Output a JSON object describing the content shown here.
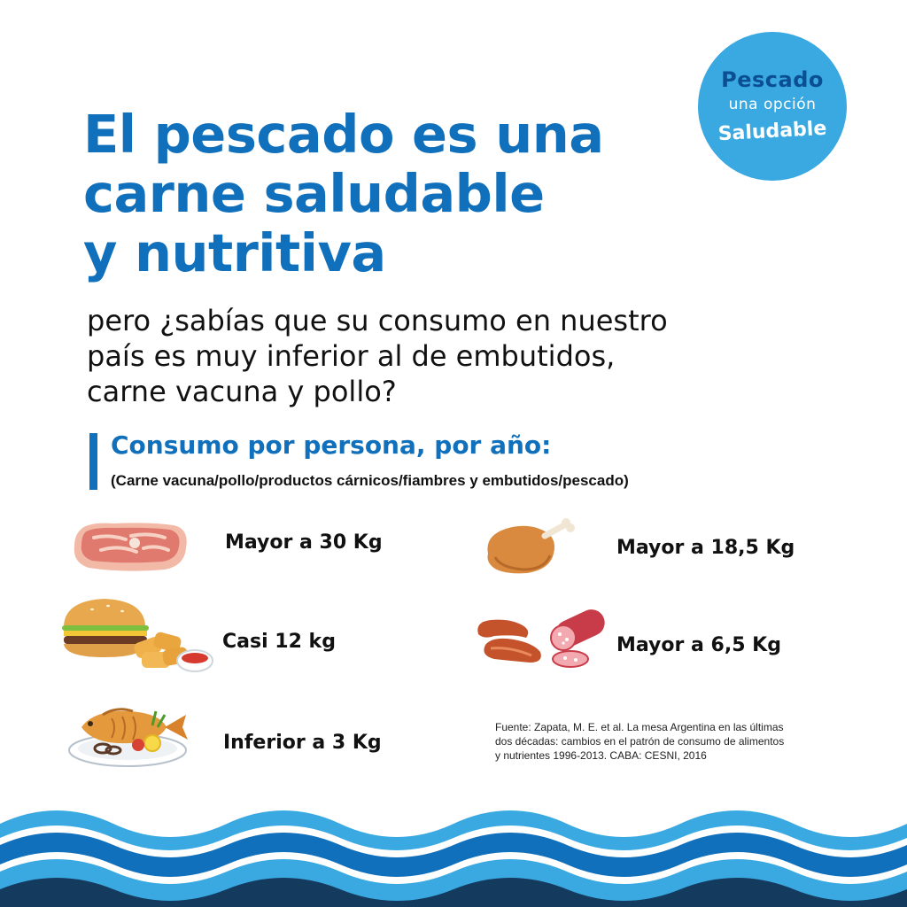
{
  "badge": {
    "line1": "Pescado",
    "line2": "una opción",
    "line3": "Saludable"
  },
  "title": {
    "line1": "El pescado es una",
    "line2": "carne saludable",
    "line3": "y nutritiva"
  },
  "subtitle": {
    "line1": "pero ¿sabías que su consumo en nuestro",
    "line2": "país es muy inferior al de embutidos,",
    "line3": "carne vacuna y pollo?"
  },
  "section": {
    "title": "Consumo por persona, por año:",
    "subtitle": "(Carne vacuna/pollo/productos cárnicos/fiambres y embutidos/pescado)"
  },
  "items": [
    {
      "icon": "steak-icon",
      "label": "Mayor a 30 Kg"
    },
    {
      "icon": "chicken-leg-icon",
      "label": "Mayor a 18,5 Kg"
    },
    {
      "icon": "burger-nuggets-icon",
      "label": "Casi 12 kg"
    },
    {
      "icon": "sausage-salami-icon",
      "label": "Mayor a 6,5 Kg"
    },
    {
      "icon": "fish-plate-icon",
      "label": "Inferior a 3 Kg"
    }
  ],
  "source": {
    "line1": "Fuente: Zapata, M. E. et al. La mesa Argentina en las últimas",
    "line2": "dos décadas: cambios en el patrón de consumo de alimentos",
    "line3": "y nutrientes 1996-2013. CABA: CESNI, 2016"
  },
  "colors": {
    "primary_blue": "#1170bb",
    "light_blue": "#3aa9e2",
    "dark_navy": "#143a5e"
  }
}
